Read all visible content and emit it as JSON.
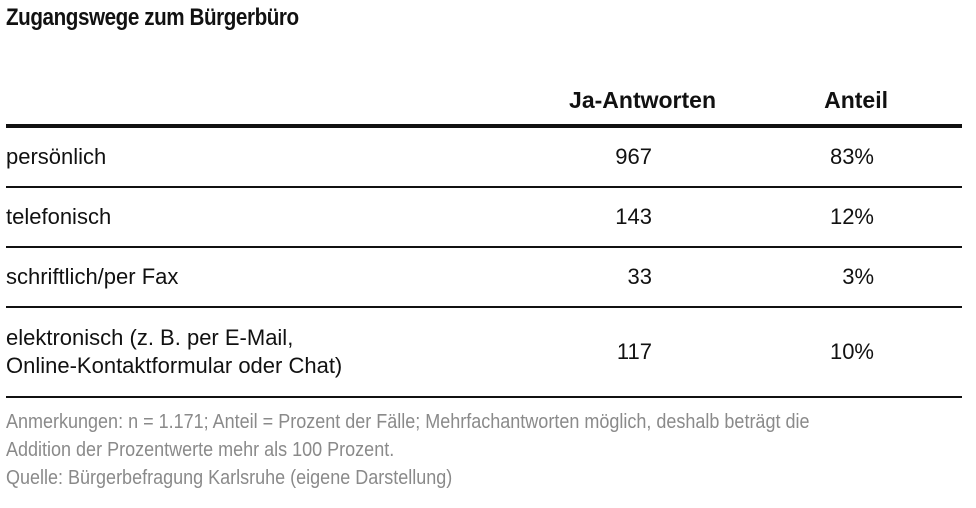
{
  "title": "Zugangswege zum Bürgerbüro",
  "chart_data": {
    "type": "table",
    "title": "Zugangswege zum Bürgerbüro",
    "columns": [
      "",
      "Ja-Antworten",
      "Anteil"
    ],
    "rows": [
      {
        "label": "persönlich",
        "ja": "967",
        "anteil": "83%"
      },
      {
        "label": "telefonisch",
        "ja": "143",
        "anteil": "12%"
      },
      {
        "label": "schriftlich/per Fax",
        "ja": "33",
        "anteil": "3%"
      },
      {
        "label": "elektronisch (z. B. per E-Mail,\nOnline-Kontaktformular oder Chat)",
        "ja": "117",
        "anteil": "10%"
      }
    ]
  },
  "notes": {
    "line1": "Anmerkungen: n = 1.171; Anteil = Prozent der Fälle; Mehrfachantworten möglich, deshalb beträgt die",
    "line2": "Addition der Prozentwerte mehr als 100 Prozent.",
    "source": "Quelle: Bürgerbefragung Karlsruhe (eigene Darstellung)"
  }
}
